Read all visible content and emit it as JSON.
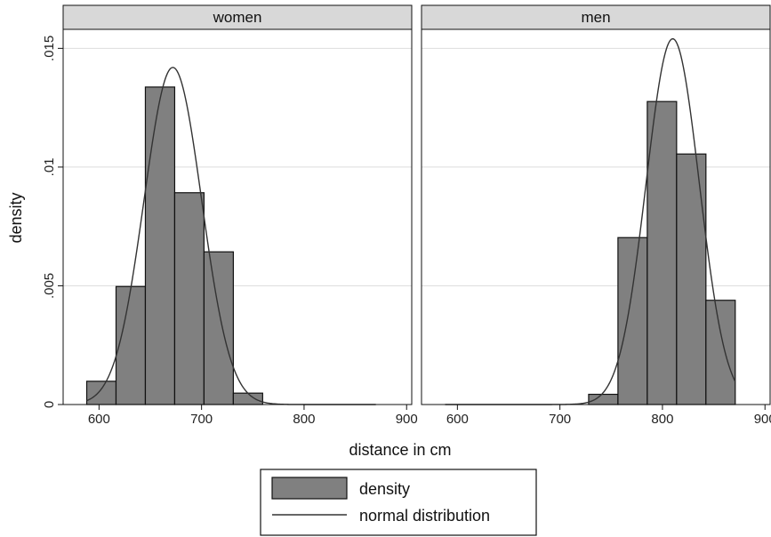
{
  "chart_data": {
    "type": "bar",
    "overlay": "line",
    "xlabel": "distance in cm",
    "ylabel": "density",
    "xlim": [
      565,
      905
    ],
    "ylim": [
      0,
      0.0158
    ],
    "xticks": [
      600,
      700,
      800,
      900
    ],
    "yticks": [
      0,
      0.005,
      0.01,
      0.015
    ],
    "ytick_labels": [
      "0",
      ".005",
      ".01",
      ".015"
    ],
    "grid": true,
    "legend": {
      "position": "bottom-center",
      "entries": [
        "density",
        "normal distribution"
      ]
    },
    "colors": {
      "bar": "#808080",
      "curve": "#333333",
      "strip": "#d8d8d8",
      "grid": "#dddddd"
    },
    "panels": [
      {
        "title": "women",
        "bin_width": 28.6,
        "bins": [
          {
            "x0": 588,
            "x1": 616.6,
            "density": 0.00098
          },
          {
            "x0": 616.6,
            "x1": 645.2,
            "density": 0.00497
          },
          {
            "x0": 645.2,
            "x1": 673.8,
            "density": 0.01337
          },
          {
            "x0": 673.8,
            "x1": 702.4,
            "density": 0.00892
          },
          {
            "x0": 702.4,
            "x1": 731,
            "density": 0.00643
          },
          {
            "x0": 731,
            "x1": 759.6,
            "density": 0.00048
          }
        ],
        "normal": {
          "mean": 672,
          "sd": 28.1,
          "x_range": [
            588,
            870
          ]
        }
      },
      {
        "title": "men",
        "bin_width": 28.6,
        "bins": [
          {
            "x0": 728,
            "x1": 756.6,
            "density": 0.00043
          },
          {
            "x0": 756.6,
            "x1": 785.2,
            "density": 0.00703
          },
          {
            "x0": 785.2,
            "x1": 813.8,
            "density": 0.01276
          },
          {
            "x0": 813.8,
            "x1": 842.4,
            "density": 0.01055
          },
          {
            "x0": 842.4,
            "x1": 871,
            "density": 0.00439
          }
        ],
        "normal": {
          "mean": 810,
          "sd": 25.9,
          "x_range": [
            588,
            871
          ]
        }
      }
    ]
  }
}
